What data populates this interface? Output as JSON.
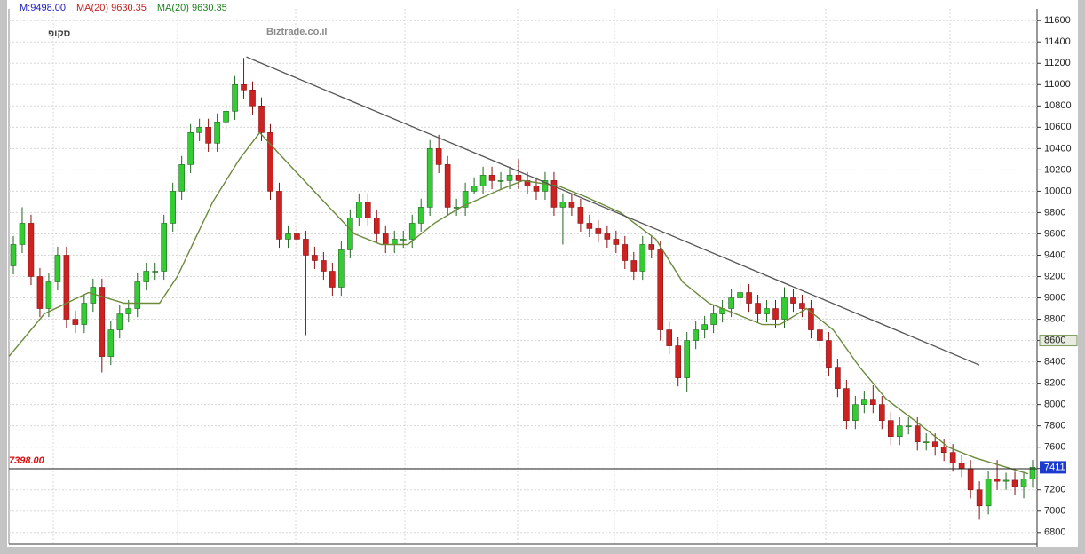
{
  "chart_data": {
    "type": "candlestick",
    "legend_text": [
      {
        "text": "M:9498.00",
        "color": "#2020c0"
      },
      {
        "text": "MA(20)  9630.35",
        "color": "#c02020"
      },
      {
        "text": "MA(20)  9630.35",
        "color": "#208020"
      }
    ],
    "logo": "סקופ",
    "watermark": "Biztrade.co.il",
    "ylim": [
      6690,
      11710
    ],
    "yticks": [
      6800,
      7000,
      7200,
      7400,
      7600,
      7800,
      8000,
      8200,
      8400,
      8600,
      8800,
      9000,
      9200,
      9400,
      9600,
      9800,
      10000,
      10200,
      10400,
      10600,
      10800,
      11000,
      11200,
      11400,
      11600
    ],
    "highlight_tick": 8600,
    "grid": true,
    "up_color": "#33cc33",
    "down_color": "#cc2222",
    "open": [
      9300,
      9500,
      9700,
      9200,
      8900,
      9150,
      9400,
      8800,
      8750,
      8950,
      9100,
      8450,
      8700,
      8850,
      8900,
      9150,
      9250,
      9250,
      9700,
      10000,
      10250,
      10550,
      10600,
      10450,
      10650,
      10750,
      11000,
      10950,
      10800,
      10550,
      10000,
      9550,
      9600,
      9550,
      9400,
      9350,
      9250,
      9100,
      9450,
      9750,
      9900,
      9750,
      9600,
      9500,
      9550,
      9550,
      9700,
      9850,
      10400,
      10250,
      9850,
      9850,
      10000,
      10050,
      10150,
      10100,
      10100,
      10150,
      10100,
      10050,
      10000,
      10100,
      9850,
      9900,
      9850,
      9700,
      9650,
      9600,
      9550,
      9500,
      9350,
      9250,
      9500,
      9450,
      8700,
      8550,
      8250,
      8600,
      8700,
      8750,
      8850,
      8900,
      9000,
      9050,
      8950,
      8850,
      8900,
      8800,
      9000,
      8950,
      8900,
      8700,
      8600,
      8350,
      8150,
      7850,
      8000,
      8050,
      8000,
      7850,
      7700,
      7800,
      7800,
      7650,
      7650,
      7600,
      7550,
      7450,
      7400,
      7200,
      7050,
      7300,
      7280,
      7290,
      7230,
      7300
    ],
    "high": [
      9580,
      9850,
      9780,
      9280,
      9230,
      9480,
      9480,
      8880,
      9030,
      9180,
      9180,
      8780,
      8930,
      8980,
      9230,
      9330,
      9330,
      9780,
      10080,
      10330,
      10630,
      10680,
      10680,
      10730,
      10830,
      11080,
      11250,
      11030,
      10880,
      10630,
      10080,
      9680,
      9680,
      9630,
      9480,
      9430,
      9330,
      9530,
      9830,
      9980,
      9980,
      9830,
      9680,
      9630,
      9630,
      9780,
      9930,
      10480,
      10530,
      10330,
      9930,
      10080,
      10130,
      10230,
      10230,
      10180,
      10230,
      10300,
      10180,
      10130,
      10180,
      10180,
      9980,
      9980,
      9930,
      9780,
      9730,
      9680,
      9630,
      9580,
      9430,
      9580,
      9580,
      9530,
      8780,
      8630,
      8680,
      8780,
      8830,
      8930,
      8980,
      9080,
      9130,
      9130,
      9030,
      8980,
      8980,
      9100,
      9080,
      9030,
      8980,
      8780,
      8680,
      8430,
      8230,
      8080,
      8130,
      8180,
      8080,
      7930,
      7880,
      7880,
      7880,
      7730,
      7730,
      7680,
      7630,
      7530,
      7480,
      7280,
      7380,
      7480,
      7360,
      7370,
      7370,
      7480
    ],
    "low": [
      9220,
      9420,
      9120,
      8820,
      8820,
      9070,
      8720,
      8670,
      8670,
      8870,
      8300,
      8370,
      8620,
      8770,
      8820,
      9070,
      9170,
      9170,
      9620,
      9920,
      10170,
      10470,
      10370,
      10370,
      10570,
      10670,
      10870,
      10720,
      10470,
      9920,
      9470,
      9470,
      9470,
      8650,
      9270,
      9170,
      9020,
      9020,
      9370,
      9670,
      9670,
      9520,
      9420,
      9420,
      9470,
      9470,
      9620,
      9770,
      10170,
      9770,
      9770,
      9770,
      9970,
      9970,
      10020,
      10020,
      10020,
      10020,
      9970,
      9920,
      9920,
      9770,
      9500,
      9770,
      9620,
      9570,
      9520,
      9470,
      9420,
      9270,
      9170,
      9170,
      9370,
      8600,
      8470,
      8170,
      8120,
      8520,
      8620,
      8670,
      8770,
      8820,
      8920,
      8870,
      8770,
      8770,
      8720,
      8720,
      8870,
      8820,
      8620,
      8520,
      8270,
      8070,
      7770,
      7770,
      7920,
      7920,
      7770,
      7620,
      7620,
      7720,
      7570,
      7570,
      7520,
      7470,
      7370,
      7320,
      7120,
      6920,
      6970,
      7200,
      7200,
      7150,
      7120,
      7220
    ],
    "close": [
      9500,
      9700,
      9200,
      8900,
      9150,
      9400,
      8800,
      8750,
      8950,
      9100,
      8450,
      8700,
      8850,
      8900,
      9150,
      9250,
      9250,
      9700,
      10000,
      10250,
      10550,
      10600,
      10450,
      10650,
      10750,
      11000,
      10950,
      10800,
      10550,
      10000,
      9550,
      9600,
      9550,
      9400,
      9350,
      9250,
      9100,
      9450,
      9750,
      9900,
      9750,
      9600,
      9500,
      9550,
      9550,
      9700,
      9850,
      10400,
      10250,
      9850,
      9850,
      10000,
      10050,
      10150,
      10100,
      10100,
      10150,
      10100,
      10050,
      10000,
      10100,
      9850,
      9900,
      9850,
      9700,
      9650,
      9600,
      9550,
      9500,
      9350,
      9250,
      9500,
      9450,
      8700,
      8550,
      8250,
      8600,
      8700,
      8750,
      8850,
      8900,
      9000,
      9050,
      8950,
      8850,
      8900,
      8800,
      9000,
      8950,
      8900,
      8700,
      8600,
      8350,
      8150,
      7850,
      8000,
      8050,
      8000,
      7850,
      7700,
      7800,
      7800,
      7650,
      7650,
      7600,
      7550,
      7450,
      7400,
      7200,
      7050,
      7300,
      7280,
      7290,
      7230,
      7300,
      7411
    ],
    "last_price_label": 7411,
    "ma": {
      "name": "MA(20)",
      "color": "#6b8a3a",
      "x": [
        -0.5,
        3.5,
        8.5,
        12.5,
        16.5,
        18.5,
        22.5,
        25.5,
        27.8,
        30,
        34.5,
        38.5,
        41.5,
        44.5,
        47.5,
        50.5,
        54.5,
        57.5,
        61.5,
        64.5,
        68.5,
        72.5,
        75.5,
        78.5,
        81.5,
        84.5,
        86.5,
        89.5,
        92.5,
        95.5,
        98.5,
        102.5,
        105.5,
        108.5,
        112.5,
        114.5
      ],
      "values": [
        8450,
        8850,
        9050,
        8950,
        8950,
        9200,
        9900,
        10300,
        10550,
        10350,
        9950,
        9600,
        9500,
        9500,
        9700,
        9850,
        10000,
        10100,
        10050,
        9950,
        9800,
        9550,
        9150,
        8950,
        8850,
        8750,
        8750,
        8900,
        8700,
        8350,
        8050,
        7800,
        7600,
        7500,
        7400,
        7350
      ]
    },
    "trendline": {
      "color": "#555555",
      "x": [
        26.3,
        109
      ],
      "values": [
        11260,
        8370
      ]
    },
    "hline": {
      "value": 7398,
      "label": "7398.00",
      "color": "#dd1111"
    }
  }
}
